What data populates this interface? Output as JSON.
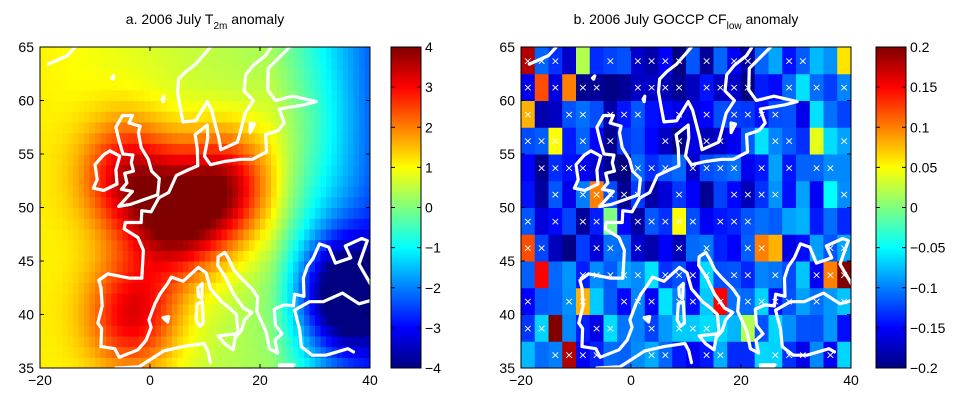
{
  "chart_data": [
    {
      "type": "heatmap",
      "title": {
        "prefix": "a. 2006 July T",
        "sub": "2m",
        "suffix": " anomaly"
      },
      "xlim": [
        -20,
        40
      ],
      "ylim": [
        35,
        65
      ],
      "xticks": [
        "−20",
        "0",
        "20",
        "40"
      ],
      "yticks": [
        "35",
        "40",
        "45",
        "50",
        "55",
        "60",
        "65"
      ],
      "colorbar": {
        "min": -4,
        "max": 4,
        "ticks": [
          "−4",
          "−3",
          "−2",
          "−1",
          "0",
          "1",
          "2",
          "3",
          "4"
        ]
      },
      "grid_step_deg": 1,
      "anomaly_centers": [
        {
          "lon": 5,
          "lat": 49,
          "value": 3.6
        },
        {
          "lon": 14,
          "lat": 52,
          "value": 3.4
        },
        {
          "lon": -4,
          "lat": 53,
          "value": 3.0
        },
        {
          "lon": -3,
          "lat": 40,
          "value": 3.0
        },
        {
          "lon": 28,
          "lat": 58,
          "value": 1.0
        },
        {
          "lon": 35,
          "lat": 42,
          "value": -3.0
        }
      ],
      "overlay": "coastlines"
    },
    {
      "type": "heatmap",
      "title": {
        "prefix": "b. 2006 July GOCCP CF",
        "sub": "low",
        "suffix": " anomaly"
      },
      "xlim": [
        -20,
        40
      ],
      "ylim": [
        35,
        65
      ],
      "xticks": [
        "−20",
        "0",
        "20",
        "40"
      ],
      "yticks": [
        "35",
        "40",
        "45",
        "50",
        "55",
        "60",
        "65"
      ],
      "colorbar": {
        "min": -0.2,
        "max": 0.2,
        "ticks": [
          "−0.2",
          "−0.15",
          "−0.1",
          "−0.05",
          "0",
          "0.05",
          "0.1",
          "0.15",
          "0.2"
        ]
      },
      "grid_step_deg": 2.5,
      "background_value": -0.15,
      "cells": [
        {
          "lon": -20,
          "lat": 62.5,
          "value": 0.18
        },
        {
          "lon": -17.5,
          "lat": 60,
          "value": 0.12
        },
        {
          "lon": -20,
          "lat": 57.5,
          "value": 0.08
        },
        {
          "lon": -15,
          "lat": 55,
          "value": 0.05
        },
        {
          "lon": -12.5,
          "lat": 60,
          "value": 0.1
        },
        {
          "lon": -10,
          "lat": 62.5,
          "value": 0.02
        },
        {
          "lon": -7.5,
          "lat": 50,
          "value": 0.1
        },
        {
          "lon": -20,
          "lat": 45,
          "value": 0.12
        },
        {
          "lon": -17.5,
          "lat": 42.5,
          "value": 0.15
        },
        {
          "lon": -15,
          "lat": 37.5,
          "value": 0.2
        },
        {
          "lon": -12.5,
          "lat": 35,
          "value": 0.18
        },
        {
          "lon": -10,
          "lat": 40,
          "value": 0.08
        },
        {
          "lon": -5,
          "lat": 47.5,
          "value": 0.0
        },
        {
          "lon": 7.5,
          "lat": 47.5,
          "value": 0.05
        },
        {
          "lon": 22.5,
          "lat": 45,
          "value": 0.1
        },
        {
          "lon": 25,
          "lat": 45,
          "value": 0.08
        },
        {
          "lon": 37.5,
          "lat": 42.5,
          "value": 0.2
        },
        {
          "lon": 35,
          "lat": 42.5,
          "value": 0.1
        },
        {
          "lon": 15,
          "lat": 40,
          "value": 0.15
        },
        {
          "lon": 37.5,
          "lat": 62.5,
          "value": 0.06
        },
        {
          "lon": 32.5,
          "lat": 55,
          "value": 0.04
        },
        {
          "lon": 35,
          "lat": 50,
          "value": -0.05
        },
        {
          "lon": 30,
          "lat": 47.5,
          "value": -0.08
        },
        {
          "lon": 20,
          "lat": 37.5,
          "value": 0.02
        }
      ],
      "significance_marker": "×",
      "overlay": "coastlines"
    }
  ]
}
